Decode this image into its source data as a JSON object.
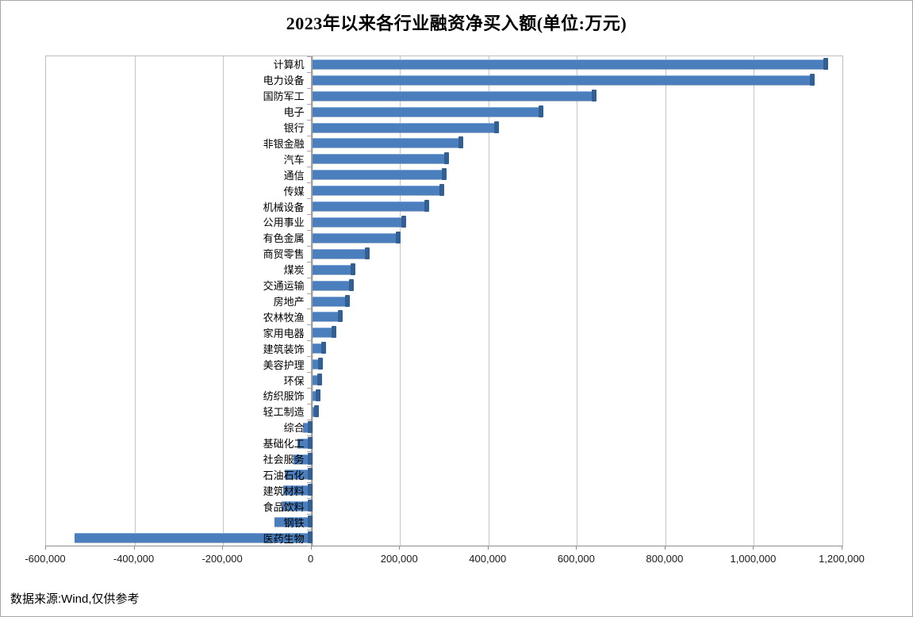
{
  "page": {
    "footer": "数据来源:Wind,仅供参考"
  },
  "chart_data": {
    "type": "bar",
    "orientation": "horizontal",
    "title": "2023年以来各行业融资净买入额(单位:万元)",
    "xlabel": "",
    "ylabel": "",
    "xlim": [
      -600000,
      1200000
    ],
    "grid": true,
    "bar_color": "#4a7ebc",
    "bar_cap_color": "#365f91",
    "categories": [
      "计算机",
      "电力设备",
      "国防军工",
      "电子",
      "银行",
      "非银金融",
      "汽车",
      "通信",
      "传媒",
      "机械设备",
      "公用事业",
      "有色金属",
      "商贸零售",
      "煤炭",
      "交通运输",
      "房地产",
      "农林牧渔",
      "家用电器",
      "建筑装饰",
      "美容护理",
      "环保",
      "纺织服饰",
      "轻工制造",
      "综合",
      "基础化工",
      "社会服务",
      "石油石化",
      "建筑材料",
      "食品饮料",
      "钢铁",
      "医药生物"
    ],
    "values": [
      1165000,
      1133000,
      640000,
      520000,
      420000,
      340000,
      308000,
      302000,
      296000,
      262000,
      210000,
      198000,
      128000,
      95000,
      92000,
      83000,
      67000,
      52000,
      29000,
      22000,
      21000,
      17000,
      13000,
      -19000,
      -32000,
      -41000,
      -60000,
      -64000,
      -67000,
      -83000,
      -536000
    ],
    "x_ticks": [
      {
        "value": -600000,
        "label": "-600,000"
      },
      {
        "value": -400000,
        "label": "-400,000"
      },
      {
        "value": -200000,
        "label": "-200,000"
      },
      {
        "value": 0,
        "label": "0"
      },
      {
        "value": 200000,
        "label": "200,000"
      },
      {
        "value": 400000,
        "label": "400,000"
      },
      {
        "value": 600000,
        "label": "600,000"
      },
      {
        "value": 800000,
        "label": "800,000"
      },
      {
        "value": 1000000,
        "label": "1,000,000"
      },
      {
        "value": 1200000,
        "label": "1,200,000"
      }
    ]
  }
}
